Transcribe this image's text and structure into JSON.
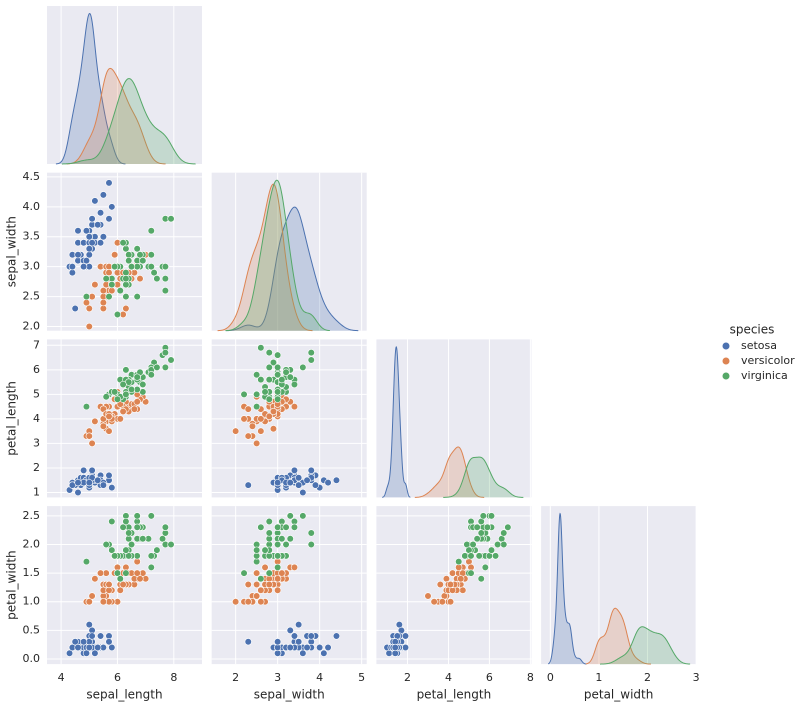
{
  "chart_data": {
    "type": "pairplot",
    "legend_title": "species",
    "variables": [
      {
        "label": "sepal_length",
        "xlim": [
          3.5,
          9.0
        ],
        "xticks": [
          4,
          6,
          8
        ]
      },
      {
        "label": "sepal_width",
        "xlim": [
          1.43,
          5.12
        ],
        "xticks": [
          2,
          3,
          4,
          5
        ],
        "ylim": [
          1.93,
          4.57
        ],
        "yticks": [
          {
            "value": 2,
            "label": "2.0"
          },
          {
            "value": 2.5,
            "label": "2.5"
          },
          {
            "value": 3,
            "label": "3.0"
          },
          {
            "value": 3.5,
            "label": "3.5"
          },
          {
            "value": 4,
            "label": "4.0"
          },
          {
            "value": 4.5,
            "label": "4.5"
          }
        ]
      },
      {
        "label": "petal_length",
        "xlim": [
          0.48,
          8.05
        ],
        "xticks": [
          2,
          4,
          6,
          8
        ],
        "ylim": [
          0.8,
          7.24
        ],
        "yticks": [
          1,
          2,
          3,
          4,
          5,
          6,
          7
        ]
      },
      {
        "label": "petal_width",
        "xlim": [
          -0.19,
          3.0
        ],
        "xticks": [
          0,
          1,
          2,
          3
        ],
        "ylim": [
          -0.09,
          2.67
        ],
        "yticks": [
          {
            "value": 0,
            "label": "0.0"
          },
          {
            "value": 0.5,
            "label": "0.5"
          },
          {
            "value": 1,
            "label": "1.0"
          },
          {
            "value": 1.5,
            "label": "1.5"
          },
          {
            "value": 2,
            "label": "2.0"
          },
          {
            "value": 2.5,
            "label": "2.5"
          }
        ]
      }
    ],
    "series": [
      {
        "name": "setosa",
        "color": "#4c72b0",
        "values": [
          [
            5.1,
            3.5,
            1.4,
            0.2
          ],
          [
            4.9,
            3.0,
            1.4,
            0.2
          ],
          [
            4.7,
            3.2,
            1.3,
            0.2
          ],
          [
            4.6,
            3.1,
            1.5,
            0.2
          ],
          [
            5.0,
            3.6,
            1.4,
            0.2
          ],
          [
            5.4,
            3.9,
            1.7,
            0.4
          ],
          [
            4.6,
            3.4,
            1.4,
            0.3
          ],
          [
            5.0,
            3.4,
            1.5,
            0.2
          ],
          [
            4.4,
            2.9,
            1.4,
            0.2
          ],
          [
            4.9,
            3.1,
            1.5,
            0.1
          ],
          [
            5.4,
            3.7,
            1.5,
            0.2
          ],
          [
            4.8,
            3.4,
            1.6,
            0.2
          ],
          [
            4.8,
            3.0,
            1.4,
            0.1
          ],
          [
            4.3,
            3.0,
            1.1,
            0.1
          ],
          [
            5.8,
            4.0,
            1.2,
            0.2
          ],
          [
            5.7,
            4.4,
            1.5,
            0.4
          ],
          [
            5.4,
            3.9,
            1.3,
            0.4
          ],
          [
            5.1,
            3.5,
            1.4,
            0.3
          ],
          [
            5.7,
            3.8,
            1.7,
            0.3
          ],
          [
            5.1,
            3.8,
            1.5,
            0.3
          ],
          [
            5.4,
            3.4,
            1.7,
            0.2
          ],
          [
            5.1,
            3.7,
            1.5,
            0.4
          ],
          [
            4.6,
            3.6,
            1.0,
            0.2
          ],
          [
            5.1,
            3.3,
            1.7,
            0.5
          ],
          [
            4.8,
            3.4,
            1.9,
            0.2
          ],
          [
            5.0,
            3.0,
            1.6,
            0.2
          ],
          [
            5.0,
            3.4,
            1.6,
            0.4
          ],
          [
            5.2,
            3.5,
            1.5,
            0.2
          ],
          [
            5.2,
            3.4,
            1.4,
            0.2
          ],
          [
            4.7,
            3.2,
            1.6,
            0.2
          ],
          [
            4.8,
            3.1,
            1.6,
            0.2
          ],
          [
            5.4,
            3.4,
            1.5,
            0.4
          ],
          [
            5.2,
            4.1,
            1.5,
            0.1
          ],
          [
            5.5,
            4.2,
            1.4,
            0.2
          ],
          [
            4.9,
            3.1,
            1.5,
            0.2
          ],
          [
            5.0,
            3.2,
            1.2,
            0.2
          ],
          [
            5.5,
            3.5,
            1.3,
            0.2
          ],
          [
            4.9,
            3.6,
            1.4,
            0.1
          ],
          [
            4.4,
            3.0,
            1.3,
            0.2
          ],
          [
            5.1,
            3.4,
            1.5,
            0.2
          ],
          [
            5.0,
            3.5,
            1.3,
            0.3
          ],
          [
            4.5,
            2.3,
            1.3,
            0.3
          ],
          [
            4.4,
            3.2,
            1.3,
            0.2
          ],
          [
            5.0,
            3.5,
            1.6,
            0.6
          ],
          [
            5.1,
            3.8,
            1.9,
            0.4
          ],
          [
            4.8,
            3.0,
            1.4,
            0.3
          ],
          [
            5.1,
            3.8,
            1.6,
            0.2
          ],
          [
            4.6,
            3.2,
            1.4,
            0.2
          ],
          [
            5.3,
            3.7,
            1.5,
            0.2
          ],
          [
            5.0,
            3.3,
            1.4,
            0.2
          ]
        ]
      },
      {
        "name": "versicolor",
        "color": "#dd8452",
        "values": [
          [
            7.0,
            3.2,
            4.7,
            1.4
          ],
          [
            6.4,
            3.2,
            4.5,
            1.5
          ],
          [
            6.9,
            3.1,
            4.9,
            1.5
          ],
          [
            5.5,
            2.3,
            4.0,
            1.3
          ],
          [
            6.5,
            2.8,
            4.6,
            1.5
          ],
          [
            5.7,
            2.8,
            4.5,
            1.3
          ],
          [
            6.3,
            3.3,
            4.7,
            1.6
          ],
          [
            4.9,
            2.4,
            3.3,
            1.0
          ],
          [
            6.6,
            2.9,
            4.6,
            1.3
          ],
          [
            5.2,
            2.7,
            3.9,
            1.4
          ],
          [
            5.0,
            2.0,
            3.5,
            1.0
          ],
          [
            5.9,
            3.0,
            4.2,
            1.5
          ],
          [
            6.0,
            2.2,
            4.0,
            1.0
          ],
          [
            6.1,
            2.9,
            4.7,
            1.4
          ],
          [
            5.6,
            2.9,
            3.6,
            1.3
          ],
          [
            6.7,
            3.1,
            4.4,
            1.4
          ],
          [
            5.6,
            3.0,
            4.5,
            1.5
          ],
          [
            5.8,
            2.7,
            4.1,
            1.0
          ],
          [
            6.2,
            2.2,
            4.5,
            1.5
          ],
          [
            5.6,
            2.5,
            3.9,
            1.1
          ],
          [
            5.9,
            3.2,
            4.8,
            1.8
          ],
          [
            6.1,
            2.8,
            4.0,
            1.3
          ],
          [
            6.3,
            2.5,
            4.9,
            1.5
          ],
          [
            6.1,
            2.8,
            4.7,
            1.2
          ],
          [
            6.4,
            2.9,
            4.3,
            1.3
          ],
          [
            6.6,
            3.0,
            4.4,
            1.4
          ],
          [
            6.8,
            2.8,
            4.8,
            1.4
          ],
          [
            6.7,
            3.0,
            5.0,
            1.7
          ],
          [
            6.0,
            2.9,
            4.5,
            1.5
          ],
          [
            5.7,
            2.6,
            3.5,
            1.0
          ],
          [
            5.5,
            2.4,
            3.8,
            1.1
          ],
          [
            5.5,
            2.4,
            3.7,
            1.0
          ],
          [
            5.8,
            2.7,
            3.9,
            1.2
          ],
          [
            6.0,
            2.7,
            5.1,
            1.6
          ],
          [
            5.4,
            3.0,
            4.5,
            1.5
          ],
          [
            6.0,
            3.4,
            4.5,
            1.6
          ],
          [
            6.7,
            3.1,
            4.7,
            1.5
          ],
          [
            6.3,
            2.3,
            4.4,
            1.3
          ],
          [
            5.6,
            3.0,
            4.1,
            1.3
          ],
          [
            5.5,
            2.5,
            4.0,
            1.3
          ],
          [
            5.5,
            2.6,
            4.4,
            1.2
          ],
          [
            6.1,
            3.0,
            4.6,
            1.4
          ],
          [
            5.8,
            2.6,
            4.0,
            1.2
          ],
          [
            5.0,
            2.3,
            3.3,
            1.0
          ],
          [
            5.6,
            2.7,
            4.2,
            1.3
          ],
          [
            5.7,
            3.0,
            4.2,
            1.2
          ],
          [
            5.7,
            2.9,
            4.2,
            1.3
          ],
          [
            6.2,
            2.9,
            4.3,
            1.3
          ],
          [
            5.1,
            2.5,
            3.0,
            1.1
          ],
          [
            5.7,
            2.8,
            4.1,
            1.3
          ]
        ]
      },
      {
        "name": "virginica",
        "color": "#55a868",
        "values": [
          [
            6.3,
            3.3,
            6.0,
            2.5
          ],
          [
            5.8,
            2.7,
            5.1,
            1.9
          ],
          [
            7.1,
            3.0,
            5.9,
            2.1
          ],
          [
            6.3,
            2.9,
            5.6,
            1.8
          ],
          [
            6.5,
            3.0,
            5.8,
            2.2
          ],
          [
            7.6,
            3.0,
            6.6,
            2.1
          ],
          [
            4.9,
            2.5,
            4.5,
            1.7
          ],
          [
            7.3,
            2.9,
            6.3,
            1.8
          ],
          [
            6.7,
            2.5,
            5.8,
            1.8
          ],
          [
            7.2,
            3.6,
            6.1,
            2.5
          ],
          [
            6.5,
            3.2,
            5.1,
            2.0
          ],
          [
            6.4,
            2.7,
            5.3,
            1.9
          ],
          [
            6.8,
            3.0,
            5.5,
            2.1
          ],
          [
            5.7,
            2.5,
            5.0,
            2.0
          ],
          [
            5.8,
            2.8,
            5.1,
            2.4
          ],
          [
            6.4,
            3.2,
            5.3,
            2.3
          ],
          [
            6.5,
            3.0,
            5.5,
            1.8
          ],
          [
            7.7,
            3.8,
            6.7,
            2.2
          ],
          [
            7.7,
            2.6,
            6.9,
            2.3
          ],
          [
            6.0,
            2.2,
            5.0,
            1.5
          ],
          [
            6.9,
            3.2,
            5.7,
            2.3
          ],
          [
            5.6,
            2.8,
            4.9,
            2.0
          ],
          [
            7.7,
            2.8,
            6.7,
            2.0
          ],
          [
            6.3,
            2.7,
            4.9,
            1.8
          ],
          [
            6.7,
            3.3,
            5.7,
            2.1
          ],
          [
            7.2,
            3.2,
            6.0,
            1.8
          ],
          [
            6.2,
            2.8,
            4.8,
            1.8
          ],
          [
            6.1,
            3.0,
            4.9,
            1.8
          ],
          [
            6.4,
            2.8,
            5.6,
            2.1
          ],
          [
            7.2,
            3.0,
            5.8,
            1.6
          ],
          [
            7.4,
            2.8,
            6.1,
            1.9
          ],
          [
            7.9,
            3.8,
            6.4,
            2.0
          ],
          [
            6.4,
            2.8,
            5.6,
            2.2
          ],
          [
            6.3,
            2.8,
            5.1,
            1.5
          ],
          [
            6.1,
            2.6,
            5.6,
            1.4
          ],
          [
            7.7,
            3.0,
            6.1,
            2.3
          ],
          [
            6.3,
            3.4,
            5.6,
            2.4
          ],
          [
            6.4,
            3.1,
            5.5,
            1.8
          ],
          [
            6.0,
            3.0,
            4.8,
            1.8
          ],
          [
            6.9,
            3.1,
            5.4,
            2.1
          ],
          [
            6.7,
            3.1,
            5.6,
            2.4
          ],
          [
            6.9,
            3.1,
            5.1,
            2.3
          ],
          [
            5.8,
            2.7,
            5.1,
            1.9
          ],
          [
            6.8,
            3.2,
            5.9,
            2.3
          ],
          [
            6.7,
            3.3,
            5.7,
            2.5
          ],
          [
            6.7,
            3.0,
            5.2,
            2.3
          ],
          [
            6.3,
            2.5,
            5.0,
            1.9
          ],
          [
            6.5,
            3.0,
            5.2,
            2.0
          ],
          [
            6.2,
            3.4,
            5.4,
            2.3
          ],
          [
            5.9,
            3.0,
            5.1,
            1.8
          ]
        ]
      }
    ]
  }
}
